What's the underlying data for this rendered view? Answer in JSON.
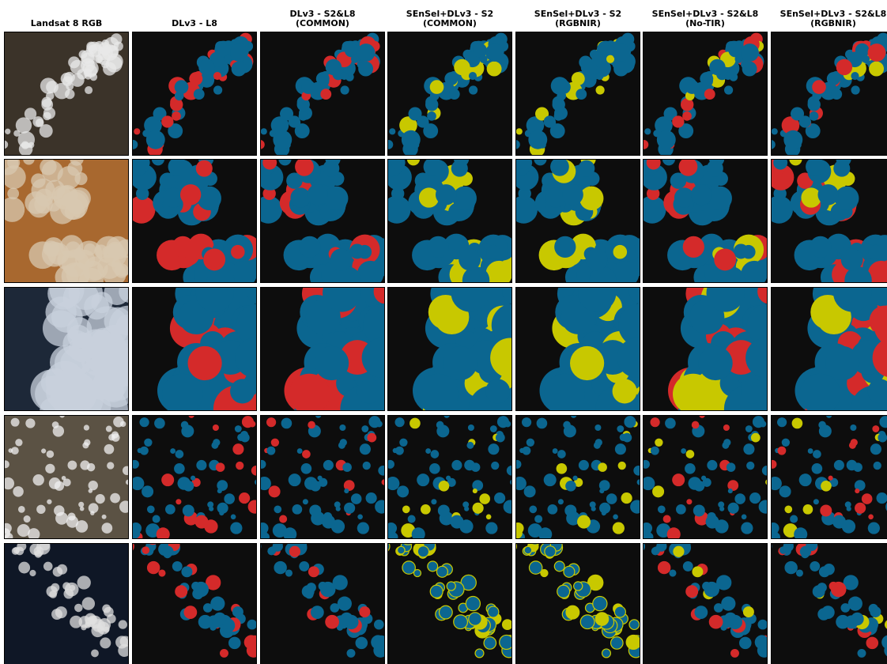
{
  "columns": [
    {
      "lines": [
        "Landsat 8 RGB"
      ]
    },
    {
      "lines": [
        "DLv3 - L8"
      ]
    },
    {
      "lines": [
        "DLv3 - S2&L8",
        "(COMMON)"
      ]
    },
    {
      "lines": [
        "SEnSel+DLv3 - S2",
        "(COMMON)"
      ]
    },
    {
      "lines": [
        "SEnSel+DLv3 - S2",
        "(RGBNIR)"
      ]
    },
    {
      "lines": [
        "SEnSel+DLv3 - S2&L8",
        "(No-TIR)"
      ]
    },
    {
      "lines": [
        "SEnSel+DLv3 - S2&L8",
        "(RGBNIR)"
      ]
    }
  ]
}
